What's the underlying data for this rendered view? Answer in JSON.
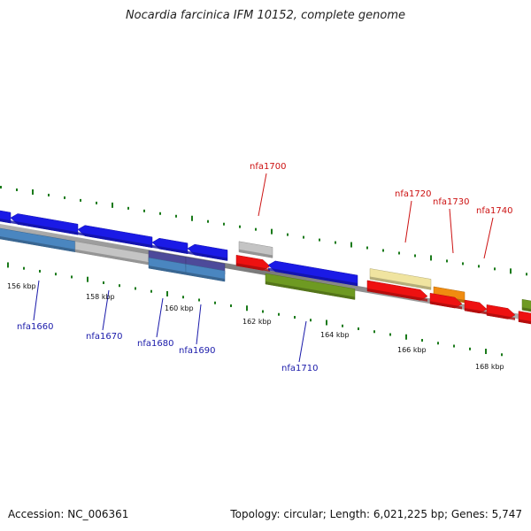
{
  "title": "Nocardia farcinica IFM 10152, complete genome",
  "footer": {
    "accession": "Accession: NC_006361",
    "summary": "Topology: circular; Length: 6,021,225 bp; Genes: 5,747"
  },
  "ticks": [
    "156 kbp",
    "158 kbp",
    "160 kbp",
    "162 kbp",
    "164 kbp",
    "166 kbp",
    "168 kbp"
  ],
  "gene_labels": [
    "nfa1660",
    "nfa1670",
    "nfa1680",
    "nfa1690",
    "nfa1700",
    "nfa1710",
    "nfa1720",
    "nfa1730",
    "nfa1740"
  ],
  "colors": {
    "blue": "#1a1ae6",
    "steel": "#4a86c0",
    "grey": "#c4c4c4",
    "purple": "#4d4a9a",
    "olive": "#6e9a22",
    "red": "#ee1111",
    "yellow": "#f0e4a0",
    "orange": "#f08c10",
    "tick_green": "#1a7a1a",
    "label_blue": "#1a1aaa",
    "label_red": "#cc1111"
  }
}
